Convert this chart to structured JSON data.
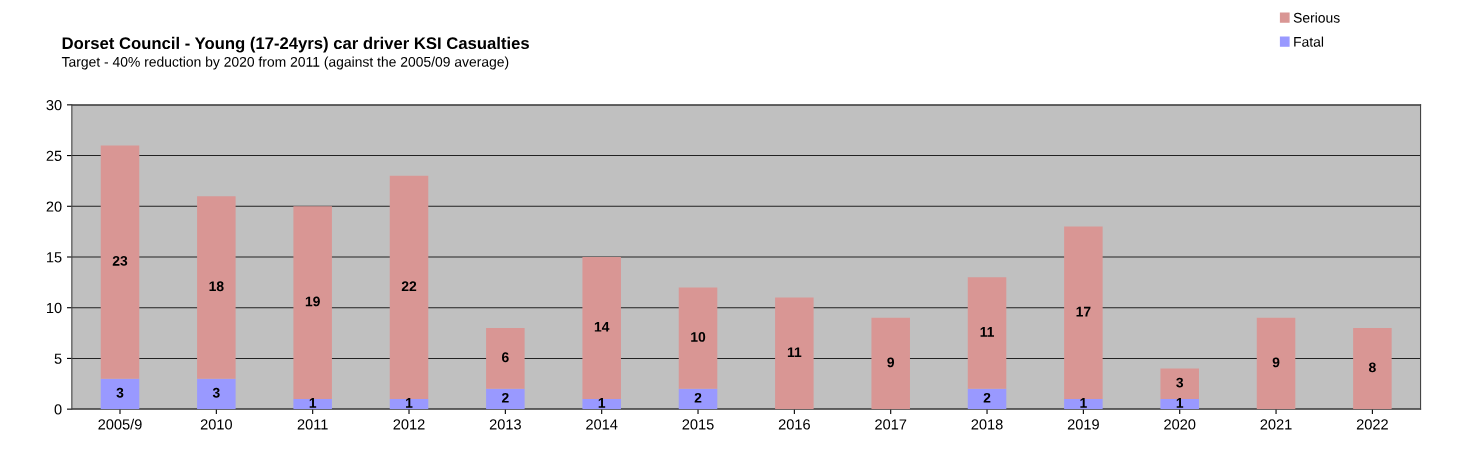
{
  "chart_data": {
    "type": "bar",
    "title": "Dorset Council - Young (17-24yrs) car driver KSI Casualties",
    "subtitle": "Target - 40% reduction by 2020 from 2011 (against the 2005/09 average)",
    "categories": [
      "2005/9",
      "2010",
      "2011",
      "2012",
      "2013",
      "2014",
      "2015",
      "2016",
      "2017",
      "2018",
      "2019",
      "2020",
      "2021",
      "2022"
    ],
    "stacked": true,
    "series": [
      {
        "name": "Fatal",
        "color": "#9999ff",
        "values": [
          3,
          3,
          1,
          1,
          2,
          1,
          2,
          0,
          0,
          2,
          1,
          1,
          0,
          0
        ],
        "value_labels": [
          "3",
          "3",
          "1",
          "1",
          "2",
          "1",
          "2",
          null,
          null,
          "2",
          "1",
          "1",
          null,
          null
        ]
      },
      {
        "name": "Serious",
        "color": "#d99694",
        "values": [
          23,
          18,
          19,
          22,
          6,
          14,
          10,
          11,
          9,
          11,
          17,
          3,
          9,
          8
        ],
        "value_labels": [
          "23",
          "18",
          "19",
          "22",
          "6",
          "14",
          "10",
          "11",
          "9",
          "11",
          "17",
          "3",
          "9",
          "8"
        ]
      }
    ],
    "ylim": [
      0,
      30
    ],
    "yticks": [
      0,
      5,
      10,
      15,
      20,
      25,
      30
    ],
    "grid": "y",
    "legend": "top right"
  }
}
